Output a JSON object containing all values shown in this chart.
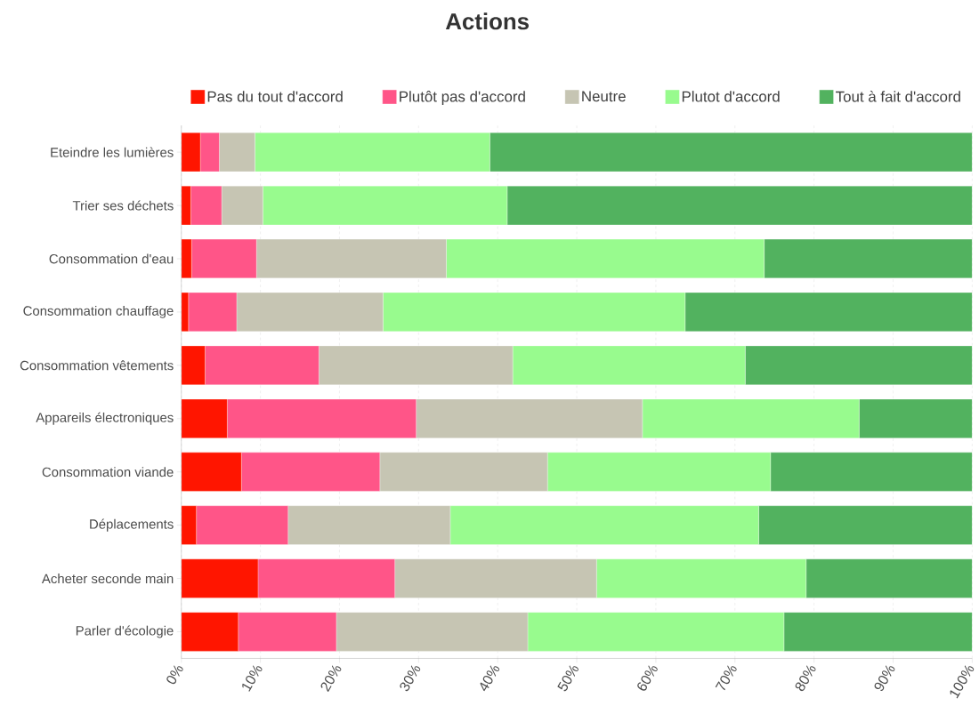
{
  "chart_data": {
    "type": "bar",
    "title": "Actions",
    "orientation": "horizontal",
    "stacked": true,
    "legend": "top",
    "grid": "x",
    "categories": [
      "Eteindre les lumières",
      "Trier ses déchets",
      "Consommation d'eau",
      "Consommation chauffage",
      "Consommation vêtements",
      "Appareils électroniques",
      "Consommation viande",
      "Déplacements",
      "Acheter seconde main",
      "Parler d'écologie"
    ],
    "xlim": [
      0,
      100
    ],
    "xticks": [
      {
        "value": 0,
        "label": "0%"
      },
      {
        "value": 10,
        "label": "10%"
      },
      {
        "value": 20,
        "label": "20%"
      },
      {
        "value": 30,
        "label": "30%"
      },
      {
        "value": 40,
        "label": "40%"
      },
      {
        "value": 50,
        "label": "50%"
      },
      {
        "value": 60,
        "label": "60%"
      },
      {
        "value": 70,
        "label": "70%"
      },
      {
        "value": 80,
        "label": "80%"
      },
      {
        "value": 90,
        "label": "90%"
      },
      {
        "value": 100,
        "label": "100%"
      }
    ],
    "series": [
      {
        "name": "Pas du tout d'accord",
        "color": "#ff1500",
        "values": [
          2.4,
          1.2,
          1.3,
          0.9,
          3.0,
          5.8,
          7.6,
          1.9,
          9.7,
          7.2
        ]
      },
      {
        "name": "Plutôt pas d'accord",
        "color": "#ff5588",
        "values": [
          2.4,
          3.9,
          8.2,
          6.1,
          14.4,
          23.9,
          17.5,
          11.6,
          17.3,
          12.4
        ]
      },
      {
        "name": "Neutre",
        "color": "#c6c5b3",
        "values": [
          4.5,
          5.2,
          24.0,
          18.5,
          24.5,
          28.6,
          21.2,
          20.5,
          25.5,
          24.2
        ]
      },
      {
        "name": "Plutot d'accord",
        "color": "#98fb8e",
        "values": [
          29.7,
          30.9,
          40.2,
          38.2,
          29.4,
          27.4,
          28.2,
          39.0,
          26.5,
          32.4
        ]
      },
      {
        "name": "Tout à fait d'accord",
        "color": "#52b25f",
        "values": [
          61.0,
          58.8,
          26.3,
          36.3,
          28.7,
          14.3,
          25.5,
          27.0,
          21.0,
          23.8
        ]
      }
    ]
  }
}
